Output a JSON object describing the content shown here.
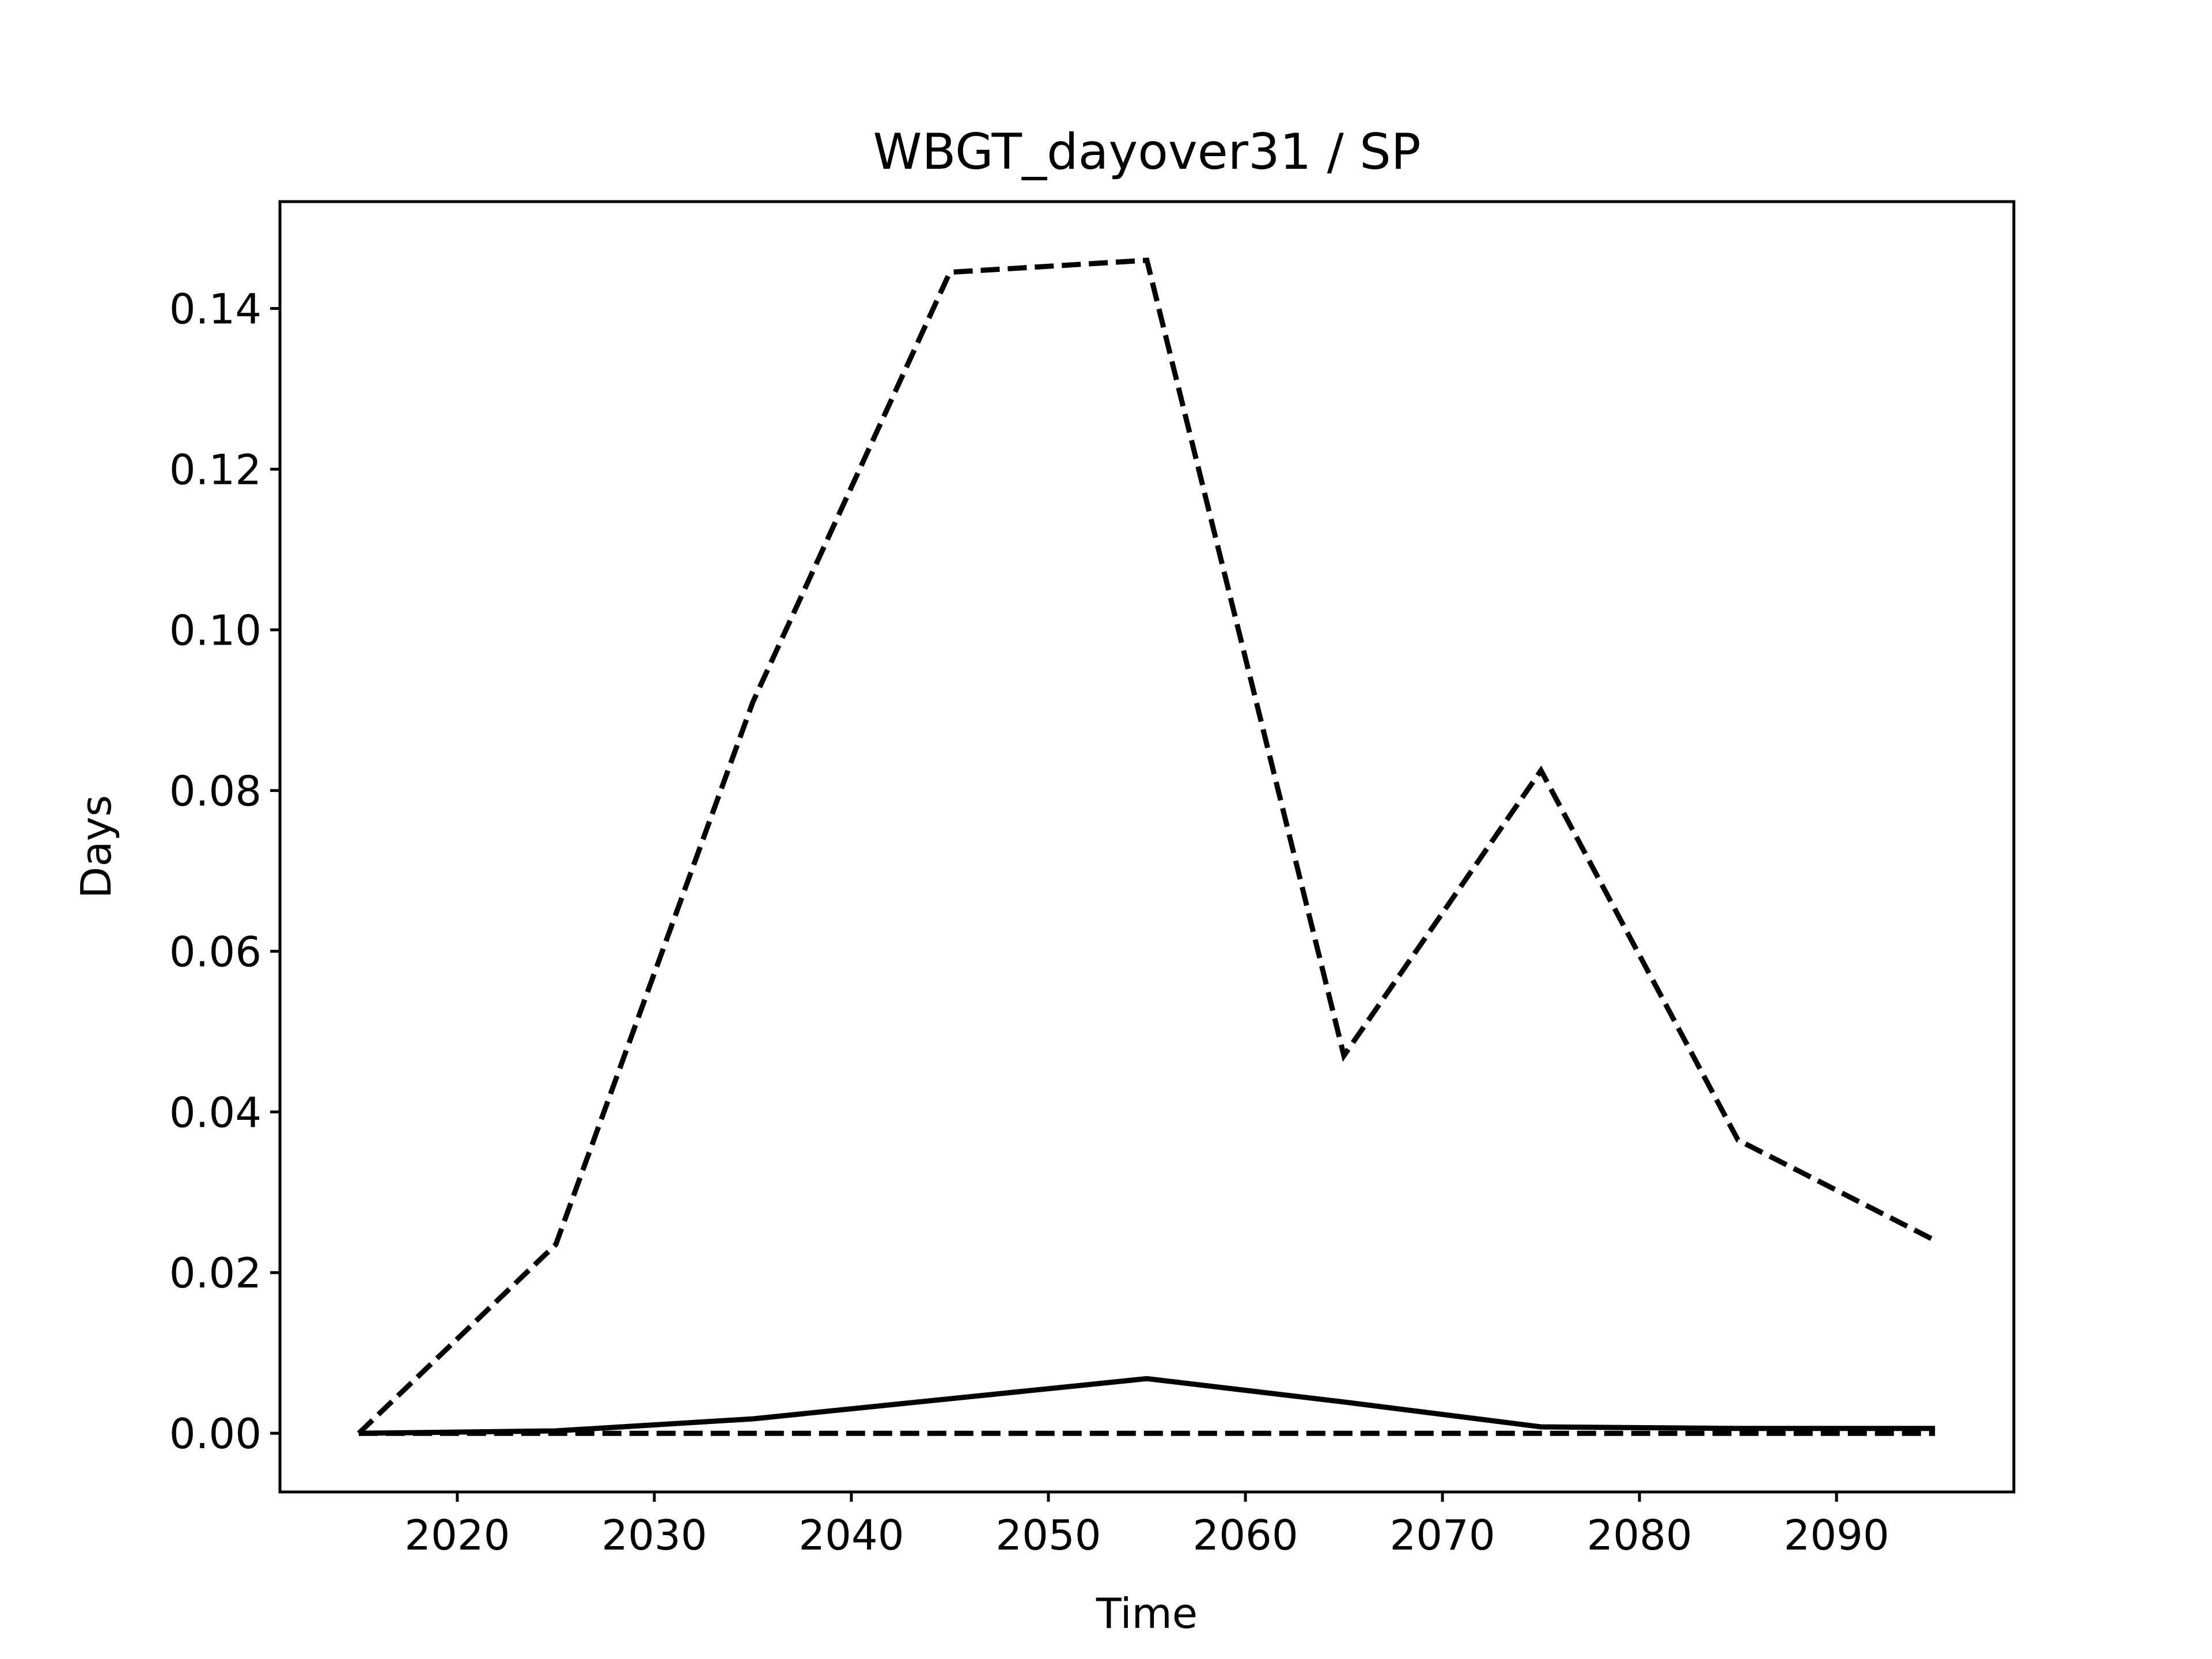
{
  "chart_data": {
    "type": "line",
    "title": "WBGT_dayover31 / SP",
    "xlabel": "Time",
    "ylabel": "Days",
    "xlim": [
      2011,
      2099
    ],
    "ylim": [
      -0.0073,
      0.1533
    ],
    "xticks": [
      2020,
      2030,
      2040,
      2050,
      2060,
      2070,
      2080,
      2090
    ],
    "yticks": [
      0.0,
      0.02,
      0.04,
      0.06,
      0.08,
      0.1,
      0.12,
      0.14
    ],
    "ytick_labels": [
      "0.00",
      "0.02",
      "0.04",
      "0.06",
      "0.08",
      "0.10",
      "0.12",
      "0.14"
    ],
    "grid": false,
    "legend": "none",
    "x": [
      2015,
      2025,
      2035,
      2045,
      2055,
      2065,
      2075,
      2085,
      2095
    ],
    "series": [
      {
        "style": "dashed",
        "color": "#000000",
        "values": [
          0.0,
          0.0235,
          0.091,
          0.1445,
          0.146,
          0.047,
          0.0825,
          0.0365,
          0.024
        ]
      },
      {
        "style": "solid",
        "color": "#000000",
        "values": [
          0.0,
          0.0003,
          0.0018,
          0.0043,
          0.0068,
          0.0039,
          0.0008,
          0.0006,
          0.0006
        ]
      },
      {
        "style": "dashed",
        "color": "#000000",
        "values": [
          0.0,
          0.0,
          0.0,
          0.0,
          0.0,
          0.0,
          0.0,
          0.0,
          0.0
        ]
      }
    ]
  }
}
